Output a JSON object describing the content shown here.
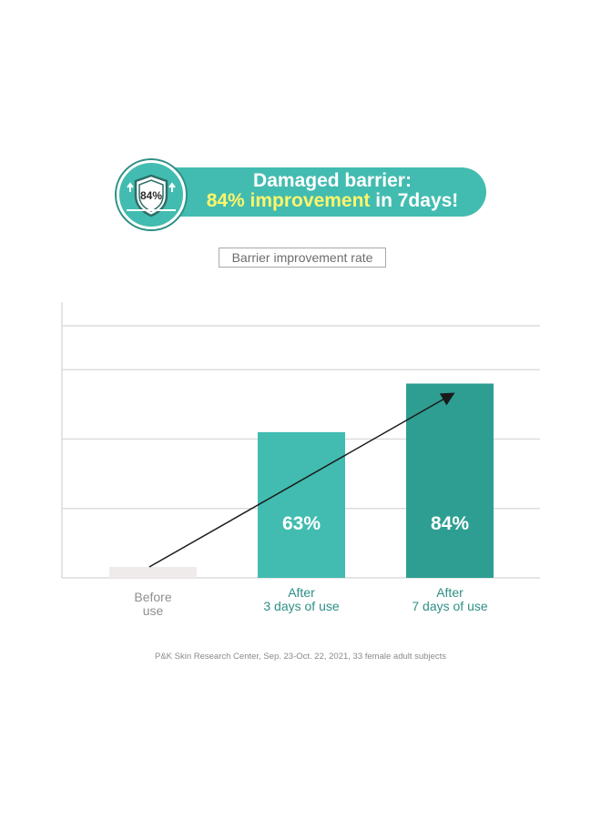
{
  "banner": {
    "badge_text": "84%",
    "line1": "Damaged barrier:",
    "line2_highlight": "84% improvement",
    "line2_rest": " in 7days!"
  },
  "legend_label": "Barrier improvement rate",
  "footnote": "P&K Skin Research Center, Sep. 23-Oct. 22, 2021, 33 female adult subjects",
  "colors": {
    "teal_light": "#42bcb0",
    "teal_dark": "#2e9e92",
    "highlight_yellow": "#fff56a",
    "baseline_bar": "#efebeb",
    "label_gray": "#8f8f8f",
    "label_teal": "#2e8f86"
  },
  "chart_data": {
    "type": "bar",
    "categories": [
      "Before\nuse",
      "After\n3 days of use",
      "After\n7 days of use"
    ],
    "values": [
      0,
      63,
      84
    ],
    "data_labels": [
      "",
      "63%",
      "84%"
    ],
    "ylim": [
      0,
      120
    ],
    "grid": true,
    "trend_arrow": true
  }
}
